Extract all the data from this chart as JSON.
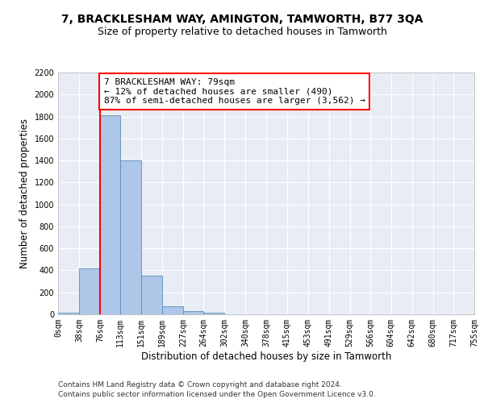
{
  "title": "7, BRACKLESHAM WAY, AMINGTON, TAMWORTH, B77 3QA",
  "subtitle": "Size of property relative to detached houses in Tamworth",
  "xlabel": "Distribution of detached houses by size in Tamworth",
  "ylabel": "Number of detached properties",
  "bar_color": "#aec6e8",
  "bar_edge_color": "#5b8db8",
  "background_color": "#e8edf5",
  "grid_color": "#ffffff",
  "annotation_text": "7 BRACKLESHAM WAY: 79sqm\n← 12% of detached houses are smaller (490)\n87% of semi-detached houses are larger (3,562) →",
  "red_line_x": 76,
  "bin_edges": [
    0,
    38,
    76,
    113,
    151,
    189,
    227,
    264,
    302,
    340,
    378,
    415,
    453,
    491,
    529,
    566,
    604,
    642,
    680,
    717,
    755
  ],
  "bar_heights": [
    15,
    420,
    1810,
    1400,
    350,
    75,
    28,
    18,
    0,
    0,
    0,
    0,
    0,
    0,
    0,
    0,
    0,
    0,
    0,
    0
  ],
  "ylim": [
    0,
    2200
  ],
  "yticks": [
    0,
    200,
    400,
    600,
    800,
    1000,
    1200,
    1400,
    1600,
    1800,
    2000,
    2200
  ],
  "footer_line1": "Contains HM Land Registry data © Crown copyright and database right 2024.",
  "footer_line2": "Contains public sector information licensed under the Open Government Licence v3.0.",
  "title_fontsize": 10,
  "subtitle_fontsize": 9,
  "tick_label_fontsize": 7,
  "ylabel_fontsize": 8.5,
  "xlabel_fontsize": 8.5,
  "annotation_fontsize": 8,
  "footer_fontsize": 6.5
}
